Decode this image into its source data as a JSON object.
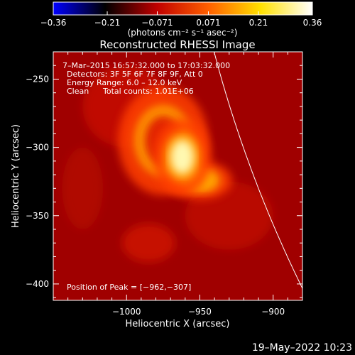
{
  "chart_data": {
    "type": "heatmap",
    "title": "Reconstructed RHESSI Image",
    "xlabel": "Heliocentric X (arcsec)",
    "ylabel": "Heliocentric Y (arcsec)",
    "xlim": [
      -1050,
      -880
    ],
    "ylim": [
      -412,
      -230
    ],
    "x_ticks": [
      -1000,
      -950,
      -900
    ],
    "y_ticks": [
      -250,
      -300,
      -350,
      -400
    ],
    "x_tick_labels": [
      "−1000",
      "−950",
      "−900"
    ],
    "y_tick_labels": [
      "−250",
      "−300",
      "−350",
      "−400"
    ],
    "colorbar": {
      "range": [
        -0.36,
        0.36
      ],
      "ticks": [
        -0.36,
        -0.21,
        -0.071,
        0.071,
        0.21,
        0.36
      ],
      "tick_labels": [
        "−0.36",
        "−0.21",
        "−0.071",
        "0.071",
        "0.21",
        "0.36"
      ],
      "unit_label": "(photons cm⁻² s⁻¹ asec⁻²)",
      "colors": [
        "#0000ff",
        "#000000",
        "#c00000",
        "#ff6000",
        "#ffe000",
        "#ffffff"
      ]
    },
    "annotations": {
      "time_range": "7–Mar–2015 16:57:32.000 to 17:03:32.000",
      "detectors": "Detectors: 3F 5F 6F 7F 8F 9F, Att 0",
      "energy_range": "Energy Range: 6.0 – 12.0 keV",
      "method": "Clean",
      "total_counts": "Total counts: 1.01E+06",
      "peak_position": "Position of Peak = [−962,−307]"
    },
    "peak": {
      "x": -962,
      "y": -307
    },
    "sources": [
      {
        "x": -962,
        "y": -307,
        "sx": 9,
        "sy": 14,
        "amp": 0.36
      },
      {
        "x": -950,
        "y": -324,
        "sx": 10,
        "sy": 7,
        "amp": 0.18
      },
      {
        "x": -975,
        "y": -295,
        "sx": 14,
        "sy": 20,
        "amp": 0.08
      }
    ],
    "background_level": 0.12,
    "limb": {
      "center_x": 0,
      "center_y": 0,
      "radius_arcsec": 968
    }
  },
  "footer": {
    "timestamp": "19–May–2022 10:23"
  }
}
